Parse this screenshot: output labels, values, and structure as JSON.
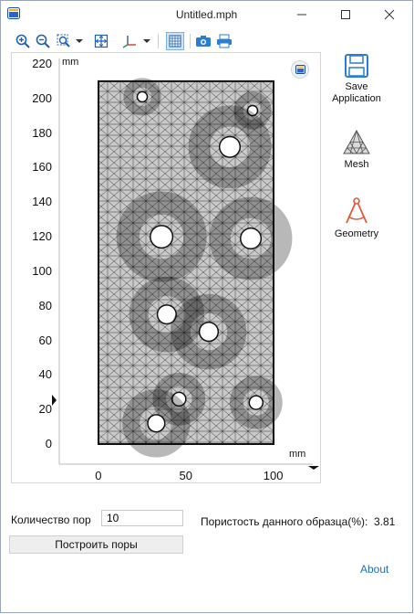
{
  "window": {
    "title": "Untitled.mph"
  },
  "titlebar": {
    "minimize_icon": "minimize-icon",
    "maximize_icon": "maximize-icon",
    "close_icon": "close-icon"
  },
  "toolbar": {
    "icons": [
      "zoom-in-icon",
      "zoom-out-icon",
      "zoom-box-icon",
      "dropdown-icon",
      "zoom-extents-icon",
      "axis-orientation-icon",
      "dropdown-icon",
      "grid-toggle-icon",
      "camera-icon",
      "print-icon"
    ]
  },
  "plot": {
    "y_unit": "mm",
    "x_unit": "mm",
    "y_ticks": [
      "220",
      "200",
      "180",
      "160",
      "140",
      "120",
      "100",
      "80",
      "60",
      "40",
      "20",
      "0"
    ],
    "x_ticks": [
      "0",
      "50",
      "100"
    ],
    "specimen": {
      "x_range": [
        0,
        100
      ],
      "y_range": [
        0,
        210
      ]
    },
    "pores": [
      {
        "x": 25,
        "y": 201,
        "r": 2.5
      },
      {
        "x": 88,
        "y": 193,
        "r": 2.5
      },
      {
        "x": 75,
        "y": 172,
        "r": 5.5
      },
      {
        "x": 36,
        "y": 120,
        "r": 6
      },
      {
        "x": 87,
        "y": 119,
        "r": 5.5
      },
      {
        "x": 39,
        "y": 75,
        "r": 5
      },
      {
        "x": 63,
        "y": 65,
        "r": 5
      },
      {
        "x": 46,
        "y": 26,
        "r": 3.5
      },
      {
        "x": 90,
        "y": 24,
        "r": 3.5
      },
      {
        "x": 33,
        "y": 12,
        "r": 4.5
      }
    ]
  },
  "sidebar": {
    "save": {
      "line1": "Save",
      "line2": "Application"
    },
    "mesh": {
      "label": "Mesh"
    },
    "geometry": {
      "label": "Geometry"
    }
  },
  "form": {
    "pore_count_label": "Количество пор",
    "pore_count_value": "10",
    "build_button": "Построить поры",
    "porosity_label": "Пористость данного образца(%):",
    "porosity_value": "3.81"
  },
  "footer": {
    "about": "About"
  },
  "colors": {
    "mesh_fill": "#c9c9c9",
    "mesh_line": "#1a1a1a",
    "link": "#1f6fb5",
    "axis_marker": "#111111"
  }
}
